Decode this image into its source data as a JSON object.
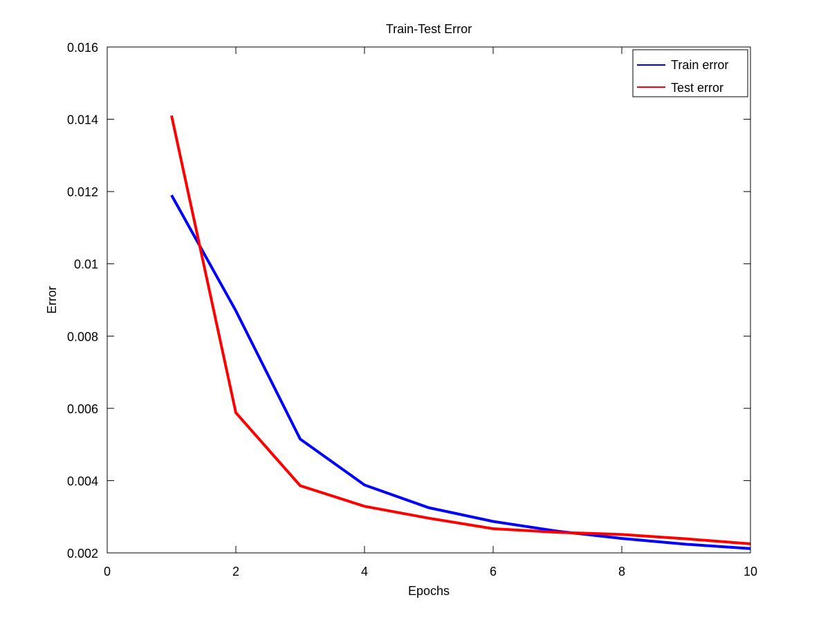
{
  "chart_data": {
    "type": "line",
    "title": "Train-Test Error",
    "xlabel": "Epochs",
    "ylabel": "Error",
    "xlim": [
      0,
      10
    ],
    "ylim": [
      0.002,
      0.016
    ],
    "x_ticks": [
      0,
      2,
      4,
      6,
      8,
      10
    ],
    "x_tick_labels": [
      "0",
      "2",
      "4",
      "6",
      "8",
      "10"
    ],
    "y_ticks": [
      0.002,
      0.004,
      0.006,
      0.008,
      0.01,
      0.012,
      0.014,
      0.016
    ],
    "y_tick_labels": [
      "0.002",
      "0.004",
      "0.006",
      "0.008",
      "0.01",
      "0.012",
      "0.014",
      "0.016"
    ],
    "grid": false,
    "legend_position": "top-right",
    "x": [
      1,
      2,
      3,
      4,
      5,
      6,
      7,
      8,
      9,
      10
    ],
    "series": [
      {
        "name": "Train error",
        "color": "#0000ff",
        "values": [
          0.0119,
          0.0087,
          0.00515,
          0.00388,
          0.00325,
          0.00287,
          0.0026,
          0.0024,
          0.00224,
          0.00212
        ]
      },
      {
        "name": "Test error",
        "color": "#ff0000",
        "values": [
          0.0141,
          0.00588,
          0.00386,
          0.00329,
          0.00296,
          0.00267,
          0.00257,
          0.00251,
          0.00239,
          0.00225
        ]
      }
    ]
  }
}
